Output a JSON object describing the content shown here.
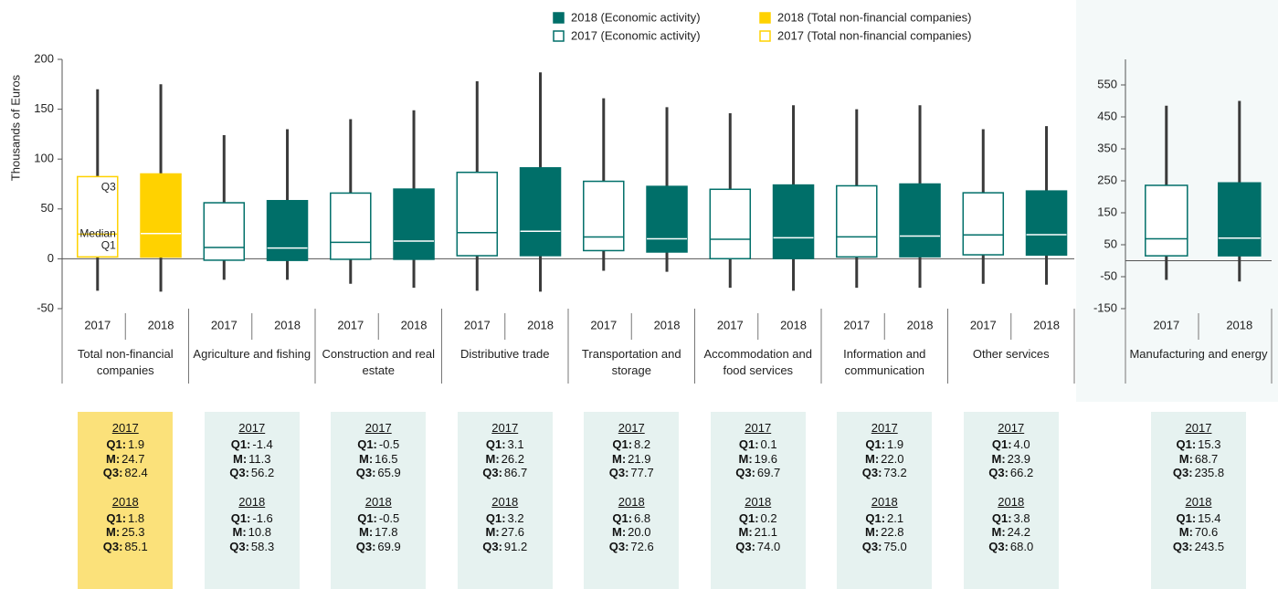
{
  "chart_data": [
    {
      "type": "box",
      "ylabel": "Thousands of Euros",
      "ylim": [
        -50,
        200
      ],
      "yticks": [
        -50,
        0,
        50,
        100,
        150,
        200
      ],
      "groups": [
        "Total non-financial companies",
        "Agriculture and fishing",
        "Construction and real estate",
        "Distributive trade",
        "Transportation and storage",
        "Accommodation and food services",
        "Information and communication",
        "Other services"
      ],
      "group_colors": [
        "#ffd200",
        "#006f69",
        "#006f69",
        "#006f69",
        "#006f69",
        "#006f69",
        "#006f69",
        "#006f69"
      ],
      "panel_colors": [
        "#fbe17a",
        "#e6f2f0",
        "#e6f2f0",
        "#e6f2f0",
        "#e6f2f0",
        "#e6f2f0",
        "#e6f2f0",
        "#e6f2f0"
      ],
      "stat_labels": [
        "Q1:",
        "M:",
        "Q3:"
      ],
      "annotations": [
        "Q3",
        "Median",
        "Q1"
      ],
      "legend": [
        {
          "name": "2018 (Economic activity)",
          "color": "#006f69",
          "filled": true
        },
        {
          "name": "2017 (Economic activity)",
          "color": "#006f69",
          "filled": false
        },
        {
          "name": "2018 (Total non-financial companies)",
          "color": "#ffd200",
          "filled": true
        },
        {
          "name": "2017 (Total non-financial companies)",
          "color": "#ffd200",
          "filled": false
        }
      ],
      "series": [
        {
          "name": "2017",
          "filled": false,
          "q1": [
            1.9,
            -1.4,
            -0.5,
            3.1,
            8.2,
            0.1,
            1.9,
            4.0
          ],
          "median": [
            24.7,
            11.3,
            16.5,
            26.2,
            21.9,
            19.6,
            22.0,
            23.9
          ],
          "q3": [
            82.4,
            56.2,
            65.9,
            86.7,
            77.7,
            69.7,
            73.2,
            66.2
          ],
          "whisker_low": [
            -32,
            -21,
            -25,
            -32,
            -12,
            -29,
            -29,
            -25
          ],
          "whisker_high": [
            170,
            124,
            140,
            178,
            161,
            146,
            150,
            130
          ],
          "q1_labels": [
            "1.9",
            "-1.4",
            "-0.5",
            "3.1",
            "8.2",
            "0.1",
            "1.9",
            "4.0"
          ],
          "median_labels": [
            "24.7",
            "11.3",
            "16.5",
            "26.2",
            "21.9",
            "19.6",
            "22.0",
            "23.9"
          ],
          "q3_labels": [
            "82.4",
            "56.2",
            "65.9",
            "86.7",
            "77.7",
            "69.7",
            "73.2",
            "66.2"
          ]
        },
        {
          "name": "2018",
          "filled": true,
          "q1": [
            1.8,
            -1.6,
            -0.5,
            3.2,
            6.8,
            0.2,
            2.1,
            3.8
          ],
          "median": [
            25.3,
            10.8,
            17.8,
            27.6,
            20.0,
            21.1,
            22.8,
            24.2
          ],
          "q3": [
            85.1,
            58.3,
            69.9,
            91.2,
            72.6,
            74.0,
            75.0,
            68.0
          ],
          "whisker_low": [
            -33,
            -21,
            -29,
            -33,
            -13,
            -32,
            -29,
            -26
          ],
          "whisker_high": [
            175,
            130,
            149,
            187,
            152,
            154,
            154,
            133
          ],
          "q1_labels": [
            "1.8",
            "-1.6",
            "-0.5",
            "3.2",
            "6.8",
            "0.2",
            "2.1",
            "3.8"
          ],
          "median_labels": [
            "25.3",
            "10.8",
            "17.8",
            "27.6",
            "20.0",
            "21.1",
            "22.8",
            "24.2"
          ],
          "q3_labels": [
            "85.1",
            "58.3",
            "69.9",
            "91.2",
            "72.6",
            "74.0",
            "75.0",
            "68.0"
          ]
        }
      ]
    },
    {
      "type": "box",
      "ylim": [
        -150,
        630
      ],
      "yticks": [
        -150,
        -50,
        50,
        150,
        250,
        350,
        450,
        550
      ],
      "groups": [
        "Manufacturing and energy"
      ],
      "group_colors": [
        "#006f69"
      ],
      "panel_colors": [
        "#e6f2f0"
      ],
      "stat_labels": [
        "Q1:",
        "M:",
        "Q3:"
      ],
      "series": [
        {
          "name": "2017",
          "filled": false,
          "q1": [
            15.3
          ],
          "median": [
            68.7
          ],
          "q3": [
            235.8
          ],
          "whisker_low": [
            -60
          ],
          "whisker_high": [
            485
          ],
          "q1_labels": [
            "15.3"
          ],
          "median_labels": [
            "68.7"
          ],
          "q3_labels": [
            "235.8"
          ]
        },
        {
          "name": "2018",
          "filled": true,
          "q1": [
            15.4
          ],
          "median": [
            70.6
          ],
          "q3": [
            243.5
          ],
          "whisker_low": [
            -65
          ],
          "whisker_high": [
            500
          ],
          "q1_labels": [
            "15.4"
          ],
          "median_labels": [
            "70.6"
          ],
          "q3_labels": [
            "243.5"
          ]
        }
      ]
    }
  ]
}
